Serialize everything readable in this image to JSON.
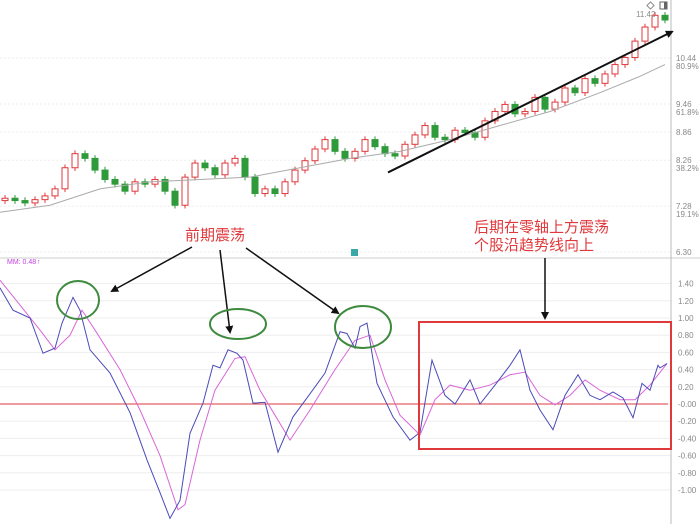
{
  "colors": {
    "bull": "#e0393c",
    "bear": "#2e9a3a",
    "ma": "#aaaaaa",
    "dif": "#4a4ab8",
    "dea": "#d866d8",
    "zero_line": "#e0393c",
    "note": "#e0393c",
    "ellipse": "#3e8a3e",
    "box": "#e0393c",
    "arrow": "#111111"
  },
  "header": {
    "icons": [
      "diamond-icon",
      "window-icon"
    ],
    "macd_legend": "MM: 0.48",
    "macd_legend_arrow": "↑"
  },
  "chart_data": [
    {
      "type": "candlestick",
      "panel": "price",
      "ylim": [
        6.3,
        11.6
      ],
      "y_ticks": [
        {
          "price": "10.44",
          "pct": "80.9%",
          "v": 10.44
        },
        {
          "price": "9.46",
          "pct": "61.8%",
          "v": 9.46
        },
        {
          "price": "8.86",
          "pct": "",
          "v": 8.86
        },
        {
          "price": "8.26",
          "pct": "38.2%",
          "v": 8.26
        },
        {
          "price": "7.28",
          "pct": "19.1%",
          "v": 7.28
        },
        {
          "price": "6.30",
          "pct": "",
          "v": 6.3
        }
      ],
      "max_label": "11.42",
      "close": [
        7.45,
        7.4,
        7.35,
        7.42,
        7.5,
        7.65,
        8.1,
        8.4,
        8.3,
        8.05,
        7.85,
        7.75,
        7.6,
        7.8,
        7.75,
        7.85,
        7.6,
        7.3,
        7.9,
        8.2,
        8.1,
        7.95,
        8.2,
        8.3,
        7.9,
        7.55,
        7.65,
        7.55,
        7.8,
        8.05,
        8.25,
        8.5,
        8.7,
        8.45,
        8.3,
        8.45,
        8.7,
        8.55,
        8.4,
        8.35,
        8.6,
        8.8,
        9.0,
        8.75,
        8.7,
        8.9,
        8.85,
        8.75,
        9.1,
        9.3,
        9.45,
        9.25,
        9.3,
        9.6,
        9.35,
        9.5,
        9.8,
        9.7,
        10.0,
        9.9,
        10.1,
        10.3,
        10.45,
        10.8,
        11.1,
        11.35,
        11.25
      ],
      "ma": [
        [
          0,
          7.15
        ],
        [
          5,
          7.3
        ],
        [
          10,
          7.65
        ],
        [
          15,
          7.8
        ],
        [
          20,
          7.85
        ],
        [
          25,
          7.9
        ],
        [
          30,
          8.1
        ],
        [
          35,
          8.3
        ],
        [
          40,
          8.45
        ],
        [
          45,
          8.7
        ],
        [
          50,
          9.0
        ],
        [
          55,
          9.3
        ],
        [
          60,
          9.7
        ],
        [
          64,
          10.05
        ],
        [
          66.5,
          10.3
        ]
      ],
      "trend_line": [
        [
          38.8,
          8.0
        ],
        [
          67.2,
          11.0
        ]
      ]
    },
    {
      "type": "line",
      "panel": "macd",
      "ylim": [
        -1.4,
        1.6
      ],
      "y_ticks": [
        "1.40",
        "1.20",
        "1.00",
        "0.80",
        "0.60",
        "0.40",
        "0.20",
        "-0.00",
        "-0.20",
        "-0.40",
        "-0.60",
        "-0.80",
        "-1.00"
      ],
      "series": [
        {
          "key": "dif",
          "values": [
            [
              0,
              1.35
            ],
            [
              1.3,
              1.09
            ],
            [
              3,
              1.0
            ],
            [
              4.3,
              0.59
            ],
            [
              5.5,
              0.65
            ],
            [
              6.2,
              0.94
            ],
            [
              7.3,
              1.24
            ],
            [
              8,
              1.09
            ],
            [
              9,
              0.63
            ],
            [
              11,
              0.36
            ],
            [
              13,
              -0.1
            ],
            [
              14.7,
              -0.65
            ],
            [
              16,
              -1.03
            ],
            [
              17,
              -1.33
            ],
            [
              18,
              -1.12
            ],
            [
              19,
              -0.34
            ],
            [
              20.3,
              0.01
            ],
            [
              21.3,
              0.45
            ],
            [
              22,
              0.42
            ],
            [
              22.8,
              0.63
            ],
            [
              23.7,
              0.59
            ],
            [
              24.3,
              0.51
            ],
            [
              25.3,
              0.01
            ],
            [
              26.5,
              0.02
            ],
            [
              27.8,
              -0.56
            ],
            [
              29.3,
              -0.15
            ],
            [
              30.7,
              0.07
            ],
            [
              32.5,
              0.36
            ],
            [
              34,
              0.84
            ],
            [
              34.7,
              0.82
            ],
            [
              35.5,
              0.65
            ],
            [
              36,
              0.9
            ],
            [
              36.7,
              0.94
            ],
            [
              37.7,
              0.24
            ],
            [
              39.3,
              -0.15
            ],
            [
              41,
              -0.42
            ],
            [
              42,
              -0.33
            ],
            [
              43.2,
              0.51
            ],
            [
              44.5,
              0.1
            ],
            [
              45.5,
              0.0
            ],
            [
              47,
              0.28
            ],
            [
              48,
              0.0
            ],
            [
              49.5,
              0.22
            ],
            [
              51,
              0.45
            ],
            [
              52,
              0.63
            ],
            [
              53,
              0.16
            ],
            [
              54,
              -0.07
            ],
            [
              55.3,
              -0.3
            ],
            [
              56.5,
              0.1
            ],
            [
              57.8,
              0.34
            ],
            [
              59,
              0.1
            ],
            [
              60,
              0.05
            ],
            [
              61.3,
              0.14
            ],
            [
              62.3,
              0.07
            ],
            [
              63.3,
              -0.16
            ],
            [
              64.2,
              0.24
            ],
            [
              65,
              0.16
            ],
            [
              65.8,
              0.45
            ],
            [
              66,
              0.42
            ],
            [
              66.7,
              0.47
            ]
          ]
        },
        {
          "key": "dea",
          "values": [
            [
              0,
              1.44
            ],
            [
              2,
              1.15
            ],
            [
              4,
              0.86
            ],
            [
              5.5,
              0.63
            ],
            [
              7,
              0.8
            ],
            [
              8.2,
              1.09
            ],
            [
              9.5,
              0.86
            ],
            [
              12,
              0.4
            ],
            [
              14,
              -0.07
            ],
            [
              16,
              -0.6
            ],
            [
              17.8,
              -1.23
            ],
            [
              18.5,
              -1.17
            ],
            [
              20,
              -0.42
            ],
            [
              21.5,
              0.16
            ],
            [
              23.5,
              0.53
            ],
            [
              24.5,
              0.55
            ],
            [
              26,
              0.16
            ],
            [
              27.5,
              -0.13
            ],
            [
              29,
              -0.42
            ],
            [
              31,
              -0.07
            ],
            [
              33.5,
              0.4
            ],
            [
              35.5,
              0.74
            ],
            [
              37,
              0.8
            ],
            [
              38.5,
              0.28
            ],
            [
              40,
              -0.13
            ],
            [
              42,
              -0.36
            ],
            [
              43.5,
              0.05
            ],
            [
              45,
              0.22
            ],
            [
              47,
              0.16
            ],
            [
              49,
              0.22
            ],
            [
              51,
              0.34
            ],
            [
              52.5,
              0.37
            ],
            [
              54,
              0.1
            ],
            [
              55.5,
              -0.01
            ],
            [
              57,
              0.1
            ],
            [
              58.5,
              0.28
            ],
            [
              60,
              0.16
            ],
            [
              62,
              0.05
            ],
            [
              63.5,
              0.05
            ],
            [
              65,
              0.22
            ],
            [
              66.7,
              0.47
            ]
          ]
        }
      ]
    }
  ],
  "annotations": {
    "left_note": "前期震荡",
    "right_note_line1": "后期在零轴上方震荡",
    "right_note_line2": "个股沿趋势线向上"
  }
}
